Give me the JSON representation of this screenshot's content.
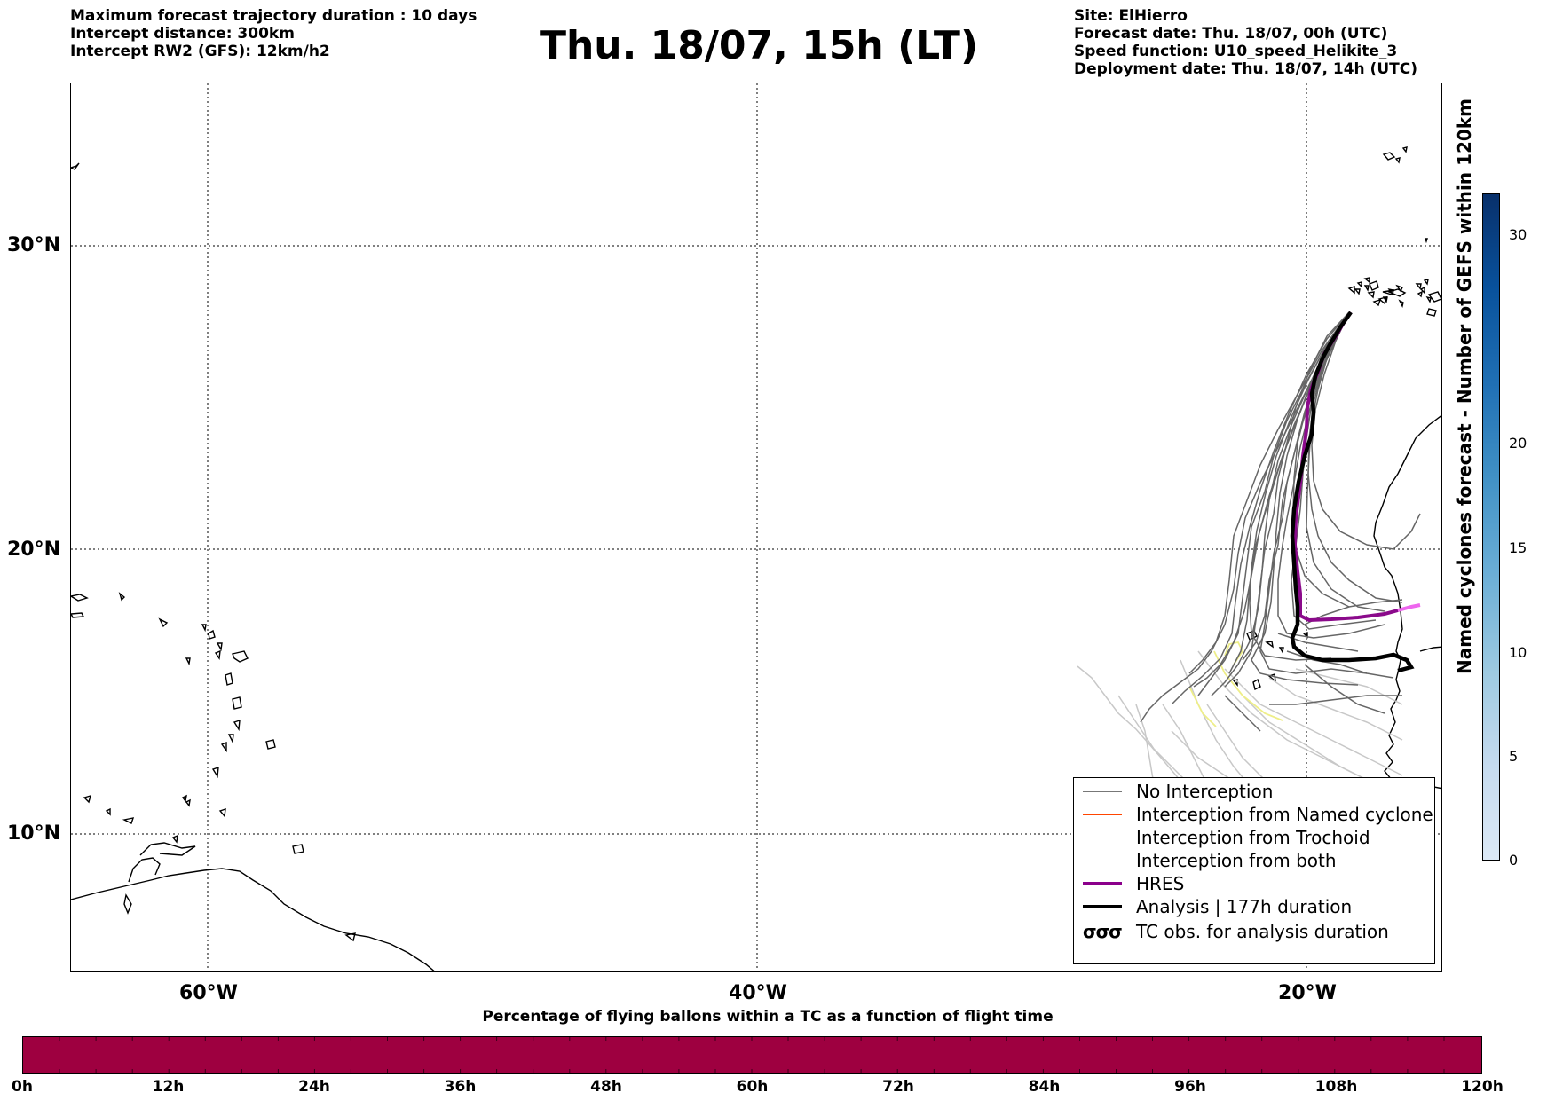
{
  "header_left": {
    "line1": "Maximum forecast trajectory duration : 10 days",
    "line2": "Intercept distance: 300km",
    "line3": "Intercept RW2 (GFS):  12km/h2"
  },
  "header_right": {
    "line1": "Site: ElHierro",
    "line2": "Forecast date: Thu. 18/07, 00h (UTC)",
    "line3": "Speed function: U10_speed_Helikite_3",
    "line4": "Deployment date: Thu. 18/07, 14h (UTC)"
  },
  "title": "Thu. 18/07, 15h (LT)",
  "map": {
    "lat_labels": [
      "30°N",
      "20°N",
      "10°N"
    ],
    "lon_labels": [
      "60°W",
      "40°W",
      "20°W"
    ],
    "grid_lons": [
      -60,
      -40,
      -20
    ],
    "grid_lats": [
      30,
      20,
      10
    ],
    "extent": {
      "lon_min": -65,
      "lon_max": -15,
      "lat_min": 4.7,
      "lat_max": 35.3
    },
    "colors": {
      "no_interception": "#555555",
      "faint_trajectory": "#c8c8c8",
      "yellow_trajectory": "#eeee88",
      "hres": "#8b0a8b",
      "hres_tail": "#ee66ee",
      "analysis": "#000000"
    }
  },
  "legend": {
    "items": [
      {
        "label": "No Interception",
        "color": "#777777"
      },
      {
        "label": "Interception from Named cyclone",
        "color": "#ff4500"
      },
      {
        "label": "Interception from Trochoid",
        "color": "#808000"
      },
      {
        "label": "Interception from both",
        "color": "#228b22"
      },
      {
        "label": "HRES",
        "color": "#8b008b"
      },
      {
        "label": "Analysis | 177h duration",
        "color": "#000000"
      },
      {
        "label": "TC obs. for analysis duration",
        "icon": "cyclone-symbols-icon",
        "symbol": "σσσ"
      }
    ]
  },
  "colorbar_right": {
    "label": "Named cyclones forecast - Number of GEFS within 120km",
    "ticks": [
      {
        "value": 0,
        "label": "0"
      },
      {
        "value": 5,
        "label": "5"
      },
      {
        "value": 10,
        "label": "10"
      },
      {
        "value": 15,
        "label": "15"
      },
      {
        "value": 20,
        "label": "20"
      },
      {
        "value": 30,
        "label": "30"
      }
    ],
    "color_low": "#dce9f6",
    "color_high": "#08306b"
  },
  "colorbar_bottom": {
    "title": "Percentage of flying ballons within a TC as a function of flight time",
    "tick_labels": [
      "0h",
      "12h",
      "24h",
      "36h",
      "48h",
      "60h",
      "72h",
      "84h",
      "96h",
      "108h",
      "120h"
    ],
    "fill_color": "#9e0040"
  }
}
